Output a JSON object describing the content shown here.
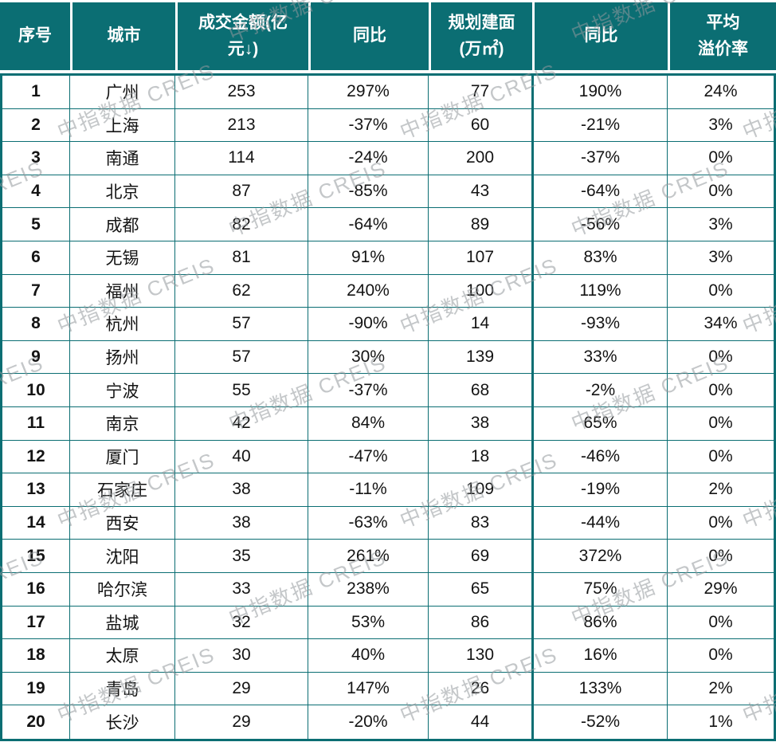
{
  "watermark": {
    "text": "中指数据 CREIS"
  },
  "theme": {
    "header_bg": "#0b6e73",
    "header_text": "#ffffff",
    "grid_border": "#0b6e73",
    "body_text": "#141414",
    "row_bg": "#ffffff",
    "watermark_color": "rgba(148,153,156,0.55)"
  },
  "table": {
    "columns": [
      {
        "id": "rank",
        "label": "序号"
      },
      {
        "id": "city",
        "label": "城市"
      },
      {
        "id": "amount",
        "label": "成交金额(亿\n元↓)"
      },
      {
        "id": "amount-yoy",
        "label": "同比"
      },
      {
        "id": "area",
        "label": "规划建面\n(万㎡)"
      },
      {
        "id": "area-yoy",
        "label": "同比"
      },
      {
        "id": "premium",
        "label": "平均\n溢价率"
      }
    ]
  },
  "chart_data": {
    "type": "table",
    "title": "",
    "columns": [
      "序号",
      "城市",
      "成交金额(亿元↓)",
      "同比",
      "规划建面(万㎡)",
      "同比",
      "平均溢价率"
    ],
    "rows": [
      [
        "1",
        "广州",
        "253",
        "297%",
        "77",
        "190%",
        "24%"
      ],
      [
        "2",
        "上海",
        "213",
        "-37%",
        "60",
        "-21%",
        "3%"
      ],
      [
        "3",
        "南通",
        "114",
        "-24%",
        "200",
        "-37%",
        "0%"
      ],
      [
        "4",
        "北京",
        "87",
        "-85%",
        "43",
        "-64%",
        "0%"
      ],
      [
        "5",
        "成都",
        "82",
        "-64%",
        "89",
        "-56%",
        "3%"
      ],
      [
        "6",
        "无锡",
        "81",
        "91%",
        "107",
        "83%",
        "3%"
      ],
      [
        "7",
        "福州",
        "62",
        "240%",
        "100",
        "119%",
        "0%"
      ],
      [
        "8",
        "杭州",
        "57",
        "-90%",
        "14",
        "-93%",
        "34%"
      ],
      [
        "9",
        "扬州",
        "57",
        "30%",
        "139",
        "33%",
        "0%"
      ],
      [
        "10",
        "宁波",
        "55",
        "-37%",
        "68",
        "-2%",
        "0%"
      ],
      [
        "11",
        "南京",
        "42",
        "84%",
        "38",
        "65%",
        "0%"
      ],
      [
        "12",
        "厦门",
        "40",
        "-47%",
        "18",
        "-46%",
        "0%"
      ],
      [
        "13",
        "石家庄",
        "38",
        "-11%",
        "109",
        "-19%",
        "2%"
      ],
      [
        "14",
        "西安",
        "38",
        "-63%",
        "83",
        "-44%",
        "0%"
      ],
      [
        "15",
        "沈阳",
        "35",
        "261%",
        "69",
        "372%",
        "0%"
      ],
      [
        "16",
        "哈尔滨",
        "33",
        "238%",
        "65",
        "75%",
        "29%"
      ],
      [
        "17",
        "盐城",
        "32",
        "53%",
        "86",
        "86%",
        "0%"
      ],
      [
        "18",
        "太原",
        "30",
        "40%",
        "130",
        "16%",
        "0%"
      ],
      [
        "19",
        "青岛",
        "29",
        "147%",
        "26",
        "133%",
        "2%"
      ],
      [
        "20",
        "长沙",
        "29",
        "-20%",
        "44",
        "-52%",
        "1%"
      ]
    ]
  }
}
